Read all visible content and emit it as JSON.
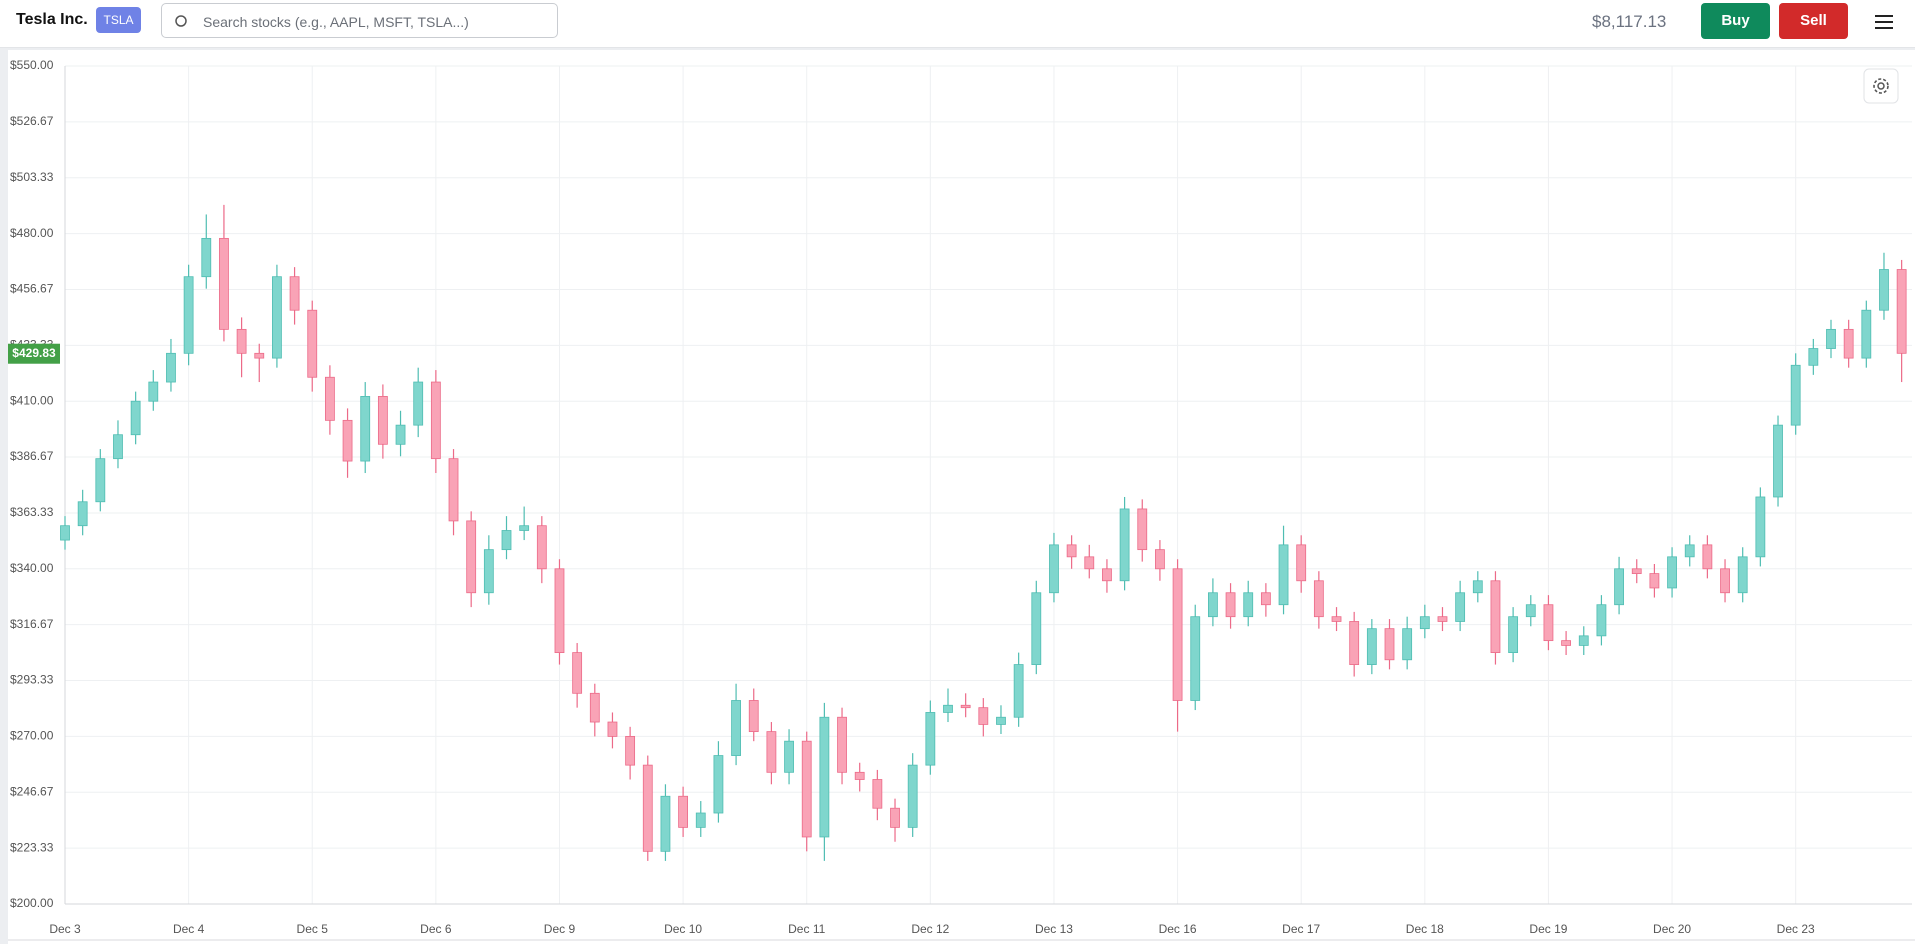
{
  "header": {
    "company": "Tesla Inc.",
    "ticker": "TSLA",
    "search_placeholder": "Search stocks (e.g., AAPL, MSFT, TSLA...)",
    "balance": "$8,117.13",
    "buy": "Buy",
    "sell": "Sell"
  },
  "chart_data": {
    "type": "candlestick",
    "grid": true,
    "up_color": "#7fd6cd",
    "up_border": "#4fbdb2",
    "down_color": "#f9a3b6",
    "down_border": "#ec6a88",
    "price_label": {
      "value": 429.83,
      "label": "$429.83"
    },
    "price_label_color": "#43a047",
    "ylim": [
      200,
      550
    ],
    "yticks": [
      {
        "value": 200,
        "label": "$200.00"
      },
      {
        "value": 223.33,
        "label": "$223.33"
      },
      {
        "value": 246.67,
        "label": "$246.67"
      },
      {
        "value": 270,
        "label": "$270.00"
      },
      {
        "value": 293.33,
        "label": "$293.33"
      },
      {
        "value": 316.67,
        "label": "$316.67"
      },
      {
        "value": 340,
        "label": "$340.00"
      },
      {
        "value": 363.33,
        "label": "$363.33"
      },
      {
        "value": 386.67,
        "label": "$386.67"
      },
      {
        "value": 410,
        "label": "$410.00"
      },
      {
        "value": 433.33,
        "label": "$433.33"
      },
      {
        "value": 456.67,
        "label": "$456.67"
      },
      {
        "value": 480,
        "label": "$480.00"
      },
      {
        "value": 503.33,
        "label": "$503.33"
      },
      {
        "value": 526.67,
        "label": "$526.67"
      },
      {
        "value": 550,
        "label": "$550.00"
      }
    ],
    "categories": [
      "Dec 3",
      null,
      null,
      null,
      null,
      null,
      null,
      "Dec 4",
      null,
      null,
      null,
      null,
      null,
      null,
      "Dec 5",
      null,
      null,
      null,
      null,
      null,
      null,
      "Dec 6",
      null,
      null,
      null,
      null,
      null,
      null,
      "Dec 9",
      null,
      null,
      null,
      null,
      null,
      null,
      "Dec 10",
      null,
      null,
      null,
      null,
      null,
      null,
      "Dec 11",
      null,
      null,
      null,
      null,
      null,
      null,
      "Dec 12",
      null,
      null,
      null,
      null,
      null,
      null,
      "Dec 13",
      null,
      null,
      null,
      null,
      null,
      null,
      "Dec 16",
      null,
      null,
      null,
      null,
      null,
      null,
      "Dec 17",
      null,
      null,
      null,
      null,
      null,
      null,
      "Dec 18",
      null,
      null,
      null,
      null,
      null,
      null,
      "Dec 19",
      null,
      null,
      null,
      null,
      null,
      null,
      "Dec 20",
      null,
      null,
      null,
      null,
      null,
      null,
      "Dec 23",
      null,
      null,
      null,
      null,
      null,
      null
    ],
    "ohlc": [
      [
        352,
        362,
        348,
        358
      ],
      [
        358,
        373,
        354,
        368
      ],
      [
        368,
        390,
        364,
        386
      ],
      [
        386,
        402,
        382,
        396
      ],
      [
        396,
        414,
        392,
        410
      ],
      [
        410,
        423,
        406,
        418
      ],
      [
        418,
        436,
        414,
        430
      ],
      [
        430,
        467,
        425,
        462
      ],
      [
        462,
        488,
        457,
        478
      ],
      [
        478,
        492,
        435,
        440
      ],
      [
        440,
        445,
        420,
        430
      ],
      [
        430,
        434,
        418,
        428
      ],
      [
        428,
        467,
        424,
        462
      ],
      [
        462,
        466,
        442,
        448
      ],
      [
        448,
        452,
        414,
        420
      ],
      [
        420,
        425,
        396,
        402
      ],
      [
        402,
        407,
        378,
        385
      ],
      [
        385,
        418,
        380,
        412
      ],
      [
        412,
        417,
        386,
        392
      ],
      [
        392,
        406,
        387,
        400
      ],
      [
        400,
        424,
        395,
        418
      ],
      [
        418,
        423,
        380,
        386
      ],
      [
        386,
        390,
        354,
        360
      ],
      [
        360,
        364,
        324,
        330
      ],
      [
        330,
        354,
        325,
        348
      ],
      [
        348,
        362,
        344,
        356
      ],
      [
        356,
        366,
        352,
        358
      ],
      [
        358,
        362,
        334,
        340
      ],
      [
        340,
        344,
        300,
        305
      ],
      [
        305,
        309,
        282,
        288
      ],
      [
        288,
        292,
        270,
        276
      ],
      [
        276,
        280,
        265,
        270
      ],
      [
        270,
        274,
        252,
        258
      ],
      [
        258,
        262,
        218,
        222
      ],
      [
        222,
        250,
        218,
        245
      ],
      [
        245,
        249,
        228,
        232
      ],
      [
        232,
        243,
        228,
        238
      ],
      [
        238,
        268,
        234,
        262
      ],
      [
        262,
        292,
        258,
        285
      ],
      [
        285,
        290,
        268,
        272
      ],
      [
        272,
        276,
        250,
        255
      ],
      [
        255,
        273,
        250,
        268
      ],
      [
        268,
        272,
        222,
        228
      ],
      [
        228,
        284,
        218,
        278
      ],
      [
        278,
        282,
        250,
        255
      ],
      [
        255,
        259,
        247,
        252
      ],
      [
        252,
        256,
        235,
        240
      ],
      [
        240,
        244,
        226,
        232
      ],
      [
        232,
        263,
        228,
        258
      ],
      [
        258,
        285,
        254,
        280
      ],
      [
        280,
        290,
        276,
        283
      ],
      [
        283,
        288,
        278,
        282
      ],
      [
        282,
        286,
        270,
        275
      ],
      [
        275,
        283,
        271,
        278
      ],
      [
        278,
        305,
        274,
        300
      ],
      [
        300,
        335,
        296,
        330
      ],
      [
        330,
        355,
        326,
        350
      ],
      [
        350,
        354,
        340,
        345
      ],
      [
        345,
        350,
        336,
        340
      ],
      [
        340,
        344,
        330,
        335
      ],
      [
        335,
        370,
        331,
        365
      ],
      [
        365,
        369,
        343,
        348
      ],
      [
        348,
        352,
        335,
        340
      ],
      [
        340,
        344,
        272,
        285
      ],
      [
        285,
        325,
        281,
        320
      ],
      [
        320,
        336,
        316,
        330
      ],
      [
        330,
        334,
        315,
        320
      ],
      [
        320,
        335,
        316,
        330
      ],
      [
        330,
        334,
        320,
        325
      ],
      [
        325,
        358,
        321,
        350
      ],
      [
        350,
        354,
        330,
        335
      ],
      [
        335,
        339,
        315,
        320
      ],
      [
        320,
        324,
        314,
        318
      ],
      [
        318,
        322,
        295,
        300
      ],
      [
        300,
        319,
        296,
        315
      ],
      [
        315,
        319,
        298,
        302
      ],
      [
        302,
        320,
        298,
        315
      ],
      [
        315,
        325,
        311,
        320
      ],
      [
        320,
        324,
        314,
        318
      ],
      [
        318,
        335,
        314,
        330
      ],
      [
        330,
        339,
        326,
        335
      ],
      [
        335,
        339,
        300,
        305
      ],
      [
        305,
        324,
        301,
        320
      ],
      [
        320,
        329,
        316,
        325
      ],
      [
        325,
        329,
        306,
        310
      ],
      [
        310,
        314,
        304,
        308
      ],
      [
        308,
        316,
        304,
        312
      ],
      [
        312,
        329,
        308,
        325
      ],
      [
        325,
        345,
        321,
        340
      ],
      [
        340,
        344,
        334,
        338
      ],
      [
        338,
        342,
        328,
        332
      ],
      [
        332,
        349,
        328,
        345
      ],
      [
        345,
        354,
        341,
        350
      ],
      [
        350,
        354,
        336,
        340
      ],
      [
        340,
        344,
        326,
        330
      ],
      [
        330,
        349,
        326,
        345
      ],
      [
        345,
        374,
        341,
        370
      ],
      [
        370,
        404,
        366,
        400
      ],
      [
        400,
        430,
        396,
        425
      ],
      [
        425,
        436,
        421,
        432
      ],
      [
        432,
        444,
        428,
        440
      ],
      [
        440,
        444,
        424,
        428
      ],
      [
        428,
        452,
        424,
        448
      ],
      [
        448,
        472,
        444,
        465
      ],
      [
        465,
        469,
        418,
        430
      ]
    ]
  }
}
